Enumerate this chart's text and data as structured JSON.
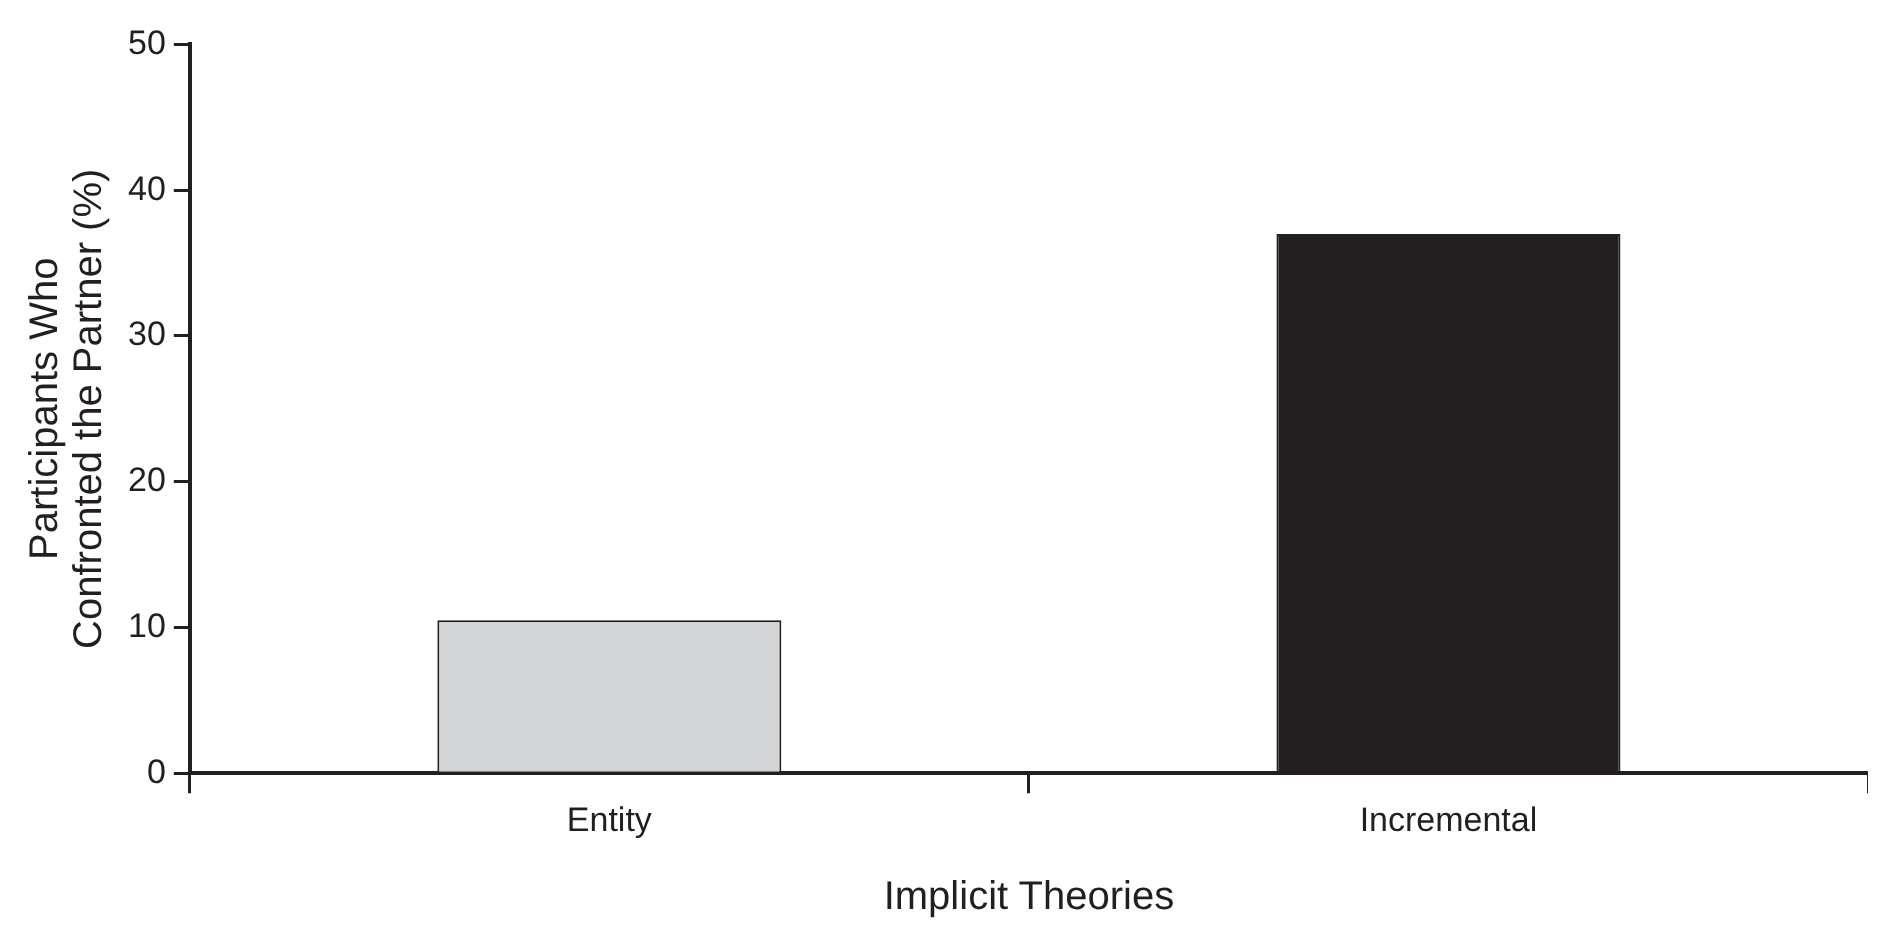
{
  "chart_data": {
    "type": "bar",
    "xlabel": "Implicit Theories",
    "ylabel": "Participants Who Confronted the Partner (%)",
    "categories": [
      "Entity",
      "Incremental"
    ],
    "values": [
      10.5,
      37.0
    ],
    "colors": [
      "#d3d4d6",
      "#231f20"
    ],
    "ylim": [
      0,
      50
    ],
    "yticks": [
      0,
      10,
      20,
      30,
      40,
      50
    ],
    "grid": false,
    "legend": false
  }
}
